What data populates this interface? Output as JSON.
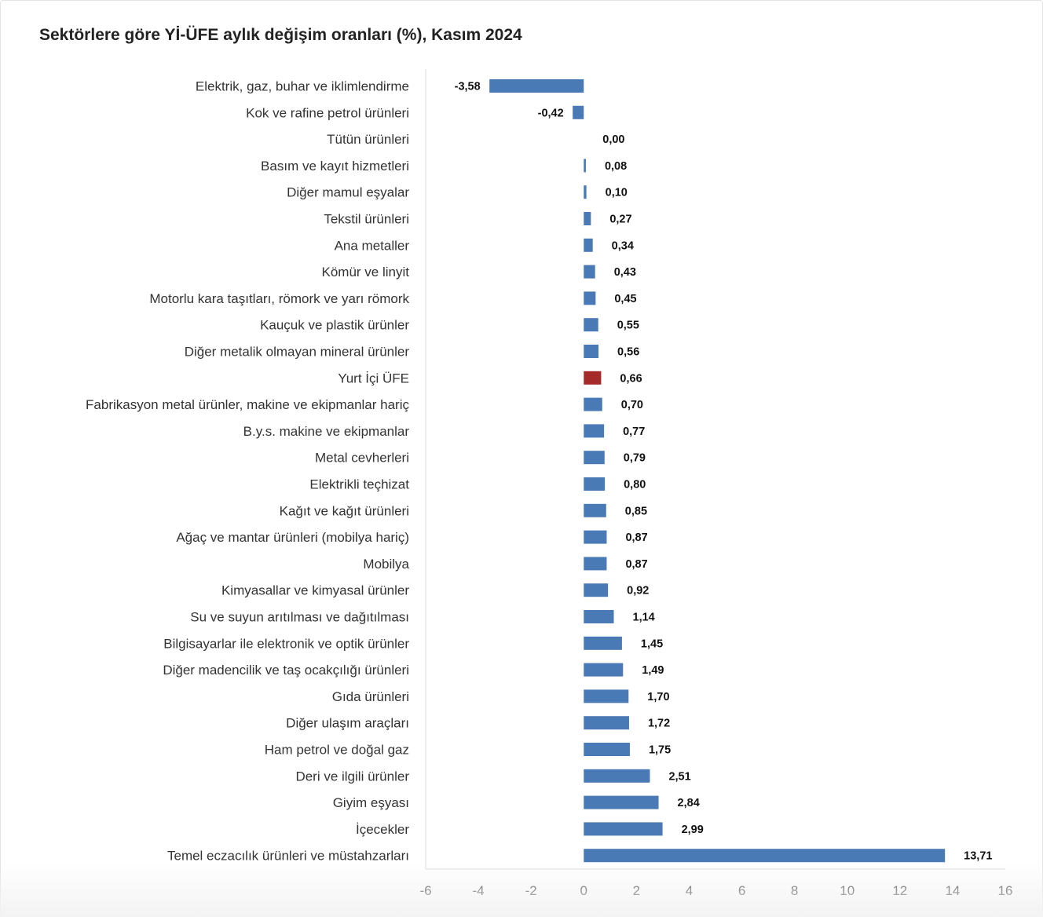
{
  "chart_data": {
    "type": "bar",
    "orientation": "horizontal",
    "title": "Sektörlere göre Yİ-ÜFE aylık değişim oranları (%), Kasım 2024",
    "xlabel": "",
    "ylabel": "",
    "xlim": [
      -6,
      16
    ],
    "xticks": [
      -6,
      -4,
      -2,
      0,
      2,
      4,
      6,
      8,
      10,
      12,
      14,
      16
    ],
    "xtick_labels": [
      "-6",
      "-4",
      "-2",
      "0",
      "2",
      "4",
      "6",
      "8",
      "10",
      "12",
      "14",
      "16"
    ],
    "grid": false,
    "legend": "none",
    "bar_color": "#4a7ab5",
    "highlight_color": "#a52a2a",
    "highlight_category": "Yurt İçi ÜFE",
    "categories": [
      "Elektrik, gaz, buhar ve iklimlendirme",
      "Kok ve rafine petrol ürünleri",
      "Tütün ürünleri",
      "Basım ve kayıt hizmetleri",
      "Diğer mamul eşyalar",
      "Tekstil ürünleri",
      "Ana metaller",
      "Kömür ve linyit",
      "Motorlu kara taşıtları, römork ve yarı römork",
      "Kauçuk ve plastik ürünler",
      "Diğer metalik olmayan mineral ürünler",
      "Yurt İçi ÜFE",
      "Fabrikasyon metal ürünler, makine ve ekipmanlar hariç",
      "B.y.s. makine ve ekipmanlar",
      "Metal cevherleri",
      "Elektrikli teçhizat",
      "Kağıt ve kağıt ürünleri",
      "Ağaç ve mantar ürünleri (mobilya hariç)",
      "Mobilya",
      "Kimyasallar ve kimyasal ürünler",
      "Su ve suyun arıtılması ve dağıtılması",
      "Bilgisayarlar ile elektronik ve optik ürünler",
      "Diğer madencilik ve taş ocakçılığı ürünleri",
      "Gıda ürünleri",
      "Diğer ulaşım araçları",
      "Ham petrol ve doğal gaz",
      "Deri ve ilgili ürünler",
      "Giyim eşyası",
      "İçecekler",
      "Temel eczacılık ürünleri ve müstahzarları"
    ],
    "values": [
      -3.58,
      -0.42,
      0.0,
      0.08,
      0.1,
      0.27,
      0.34,
      0.43,
      0.45,
      0.55,
      0.56,
      0.66,
      0.7,
      0.77,
      0.79,
      0.8,
      0.85,
      0.87,
      0.87,
      0.92,
      1.14,
      1.45,
      1.49,
      1.7,
      1.72,
      1.75,
      2.51,
      2.84,
      2.99,
      13.71
    ],
    "value_labels": [
      "-3,58",
      "-0,42",
      "0,00",
      "0,08",
      "0,10",
      "0,27",
      "0,34",
      "0,43",
      "0,45",
      "0,55",
      "0,56",
      "0,66",
      "0,70",
      "0,77",
      "0,79",
      "0,80",
      "0,85",
      "0,87",
      "0,87",
      "0,92",
      "1,14",
      "1,45",
      "1,49",
      "1,70",
      "1,72",
      "1,75",
      "2,51",
      "2,84",
      "2,99",
      "13,71"
    ]
  }
}
